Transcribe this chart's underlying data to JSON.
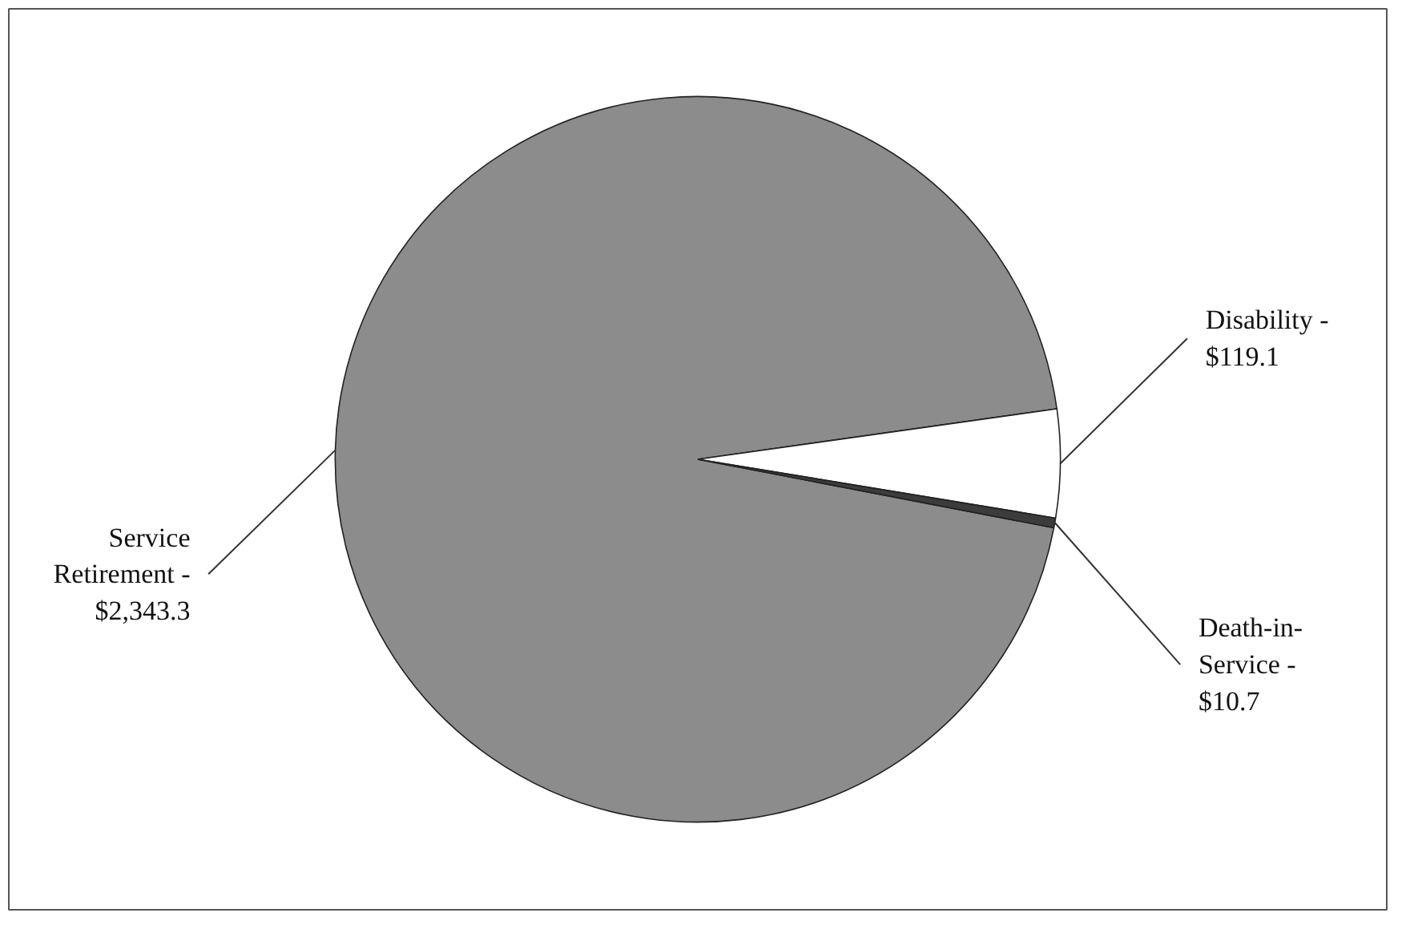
{
  "chart_data": {
    "type": "pie",
    "categories": [
      "Service Retirement -",
      "Disability -",
      "Death-in-Service -"
    ],
    "values": [
      2343.3,
      119.1,
      10.7
    ],
    "value_labels": [
      "$2,343.3",
      "$119.1",
      "$10.7"
    ],
    "colors": [
      "#8c8c8c",
      "#ffffff",
      "#3c3c3c"
    ]
  }
}
